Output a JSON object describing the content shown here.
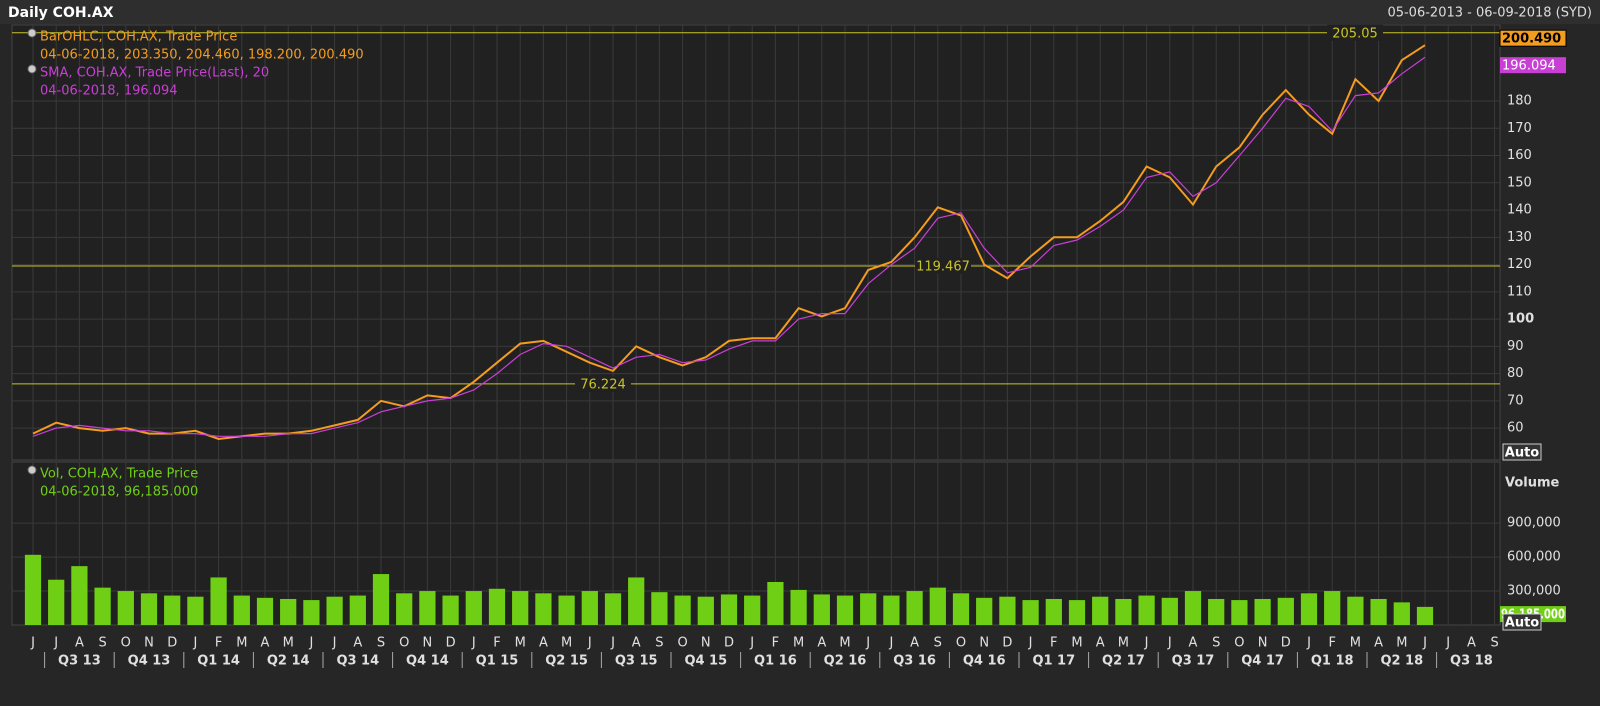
{
  "header": {
    "title": "Daily COH.AX",
    "range": "05-06-2013 - 06-09-2018 (SYD)"
  },
  "auto_label": "Auto",
  "categories": [
    "J",
    "J",
    "A",
    "S",
    "O",
    "N",
    "D",
    "J",
    "F",
    "M",
    "A",
    "M",
    "J",
    "J",
    "A",
    "S",
    "O",
    "N",
    "D",
    "J",
    "F",
    "M",
    "A",
    "M",
    "J",
    "J",
    "A",
    "S",
    "O",
    "N",
    "D",
    "J",
    "F",
    "M",
    "A",
    "M",
    "J",
    "J",
    "A",
    "S",
    "O",
    "N",
    "D",
    "J",
    "F",
    "M",
    "A",
    "M",
    "J",
    "J",
    "A",
    "S",
    "O",
    "N",
    "D",
    "J",
    "F",
    "M",
    "A",
    "M",
    "J",
    "J",
    "A",
    "S"
  ],
  "quarters": [
    "Q3 13",
    "Q4 13",
    "Q1 14",
    "Q2 14",
    "Q3 14",
    "Q4 14",
    "Q1 15",
    "Q2 15",
    "Q3 15",
    "Q4 15",
    "Q1 16",
    "Q2 16",
    "Q3 16",
    "Q4 16",
    "Q1 17",
    "Q2 17",
    "Q3 17",
    "Q4 17",
    "Q1 18",
    "Q2 18",
    "Q3 18"
  ],
  "chart_data": [
    {
      "type": "line",
      "ylim": [
        48.3,
        207.9
      ],
      "yticks": [
        60,
        70,
        80,
        90,
        100,
        110,
        120,
        130,
        140,
        150,
        160,
        170,
        180
      ],
      "grid": true,
      "series": [
        {
          "name": "BarOHLC, COH.AX, Trade Price",
          "legend_value": "04-06-2018, 203.350, 204.460, 198.200, 200.490",
          "color": "#f39c1f",
          "last_label": "200.490",
          "values": [
            58,
            62,
            60,
            59,
            60,
            58,
            58,
            59,
            56,
            57,
            58,
            58,
            59,
            61,
            63,
            70,
            68,
            72,
            71,
            77,
            84,
            91,
            92,
            88,
            84,
            81,
            90,
            86,
            83,
            86,
            92,
            93,
            93,
            104,
            101,
            104,
            118,
            121,
            130,
            141,
            138,
            120,
            115,
            123,
            130,
            130,
            136,
            143,
            156,
            152,
            142,
            156,
            163,
            175,
            184,
            175,
            168,
            188,
            180,
            195,
            200.49,
            null,
            null,
            null
          ]
        },
        {
          "name": "SMA, COH.AX, Trade Price(Last),  20",
          "legend_value": "04-06-2018, 196.094",
          "color": "#c93fd6",
          "last_label": "196.094",
          "values": [
            57,
            60,
            61,
            60,
            59,
            59,
            58,
            58,
            57,
            57,
            57,
            58,
            58,
            60,
            62,
            66,
            68,
            70,
            71,
            74,
            80,
            87,
            91,
            90,
            86,
            82,
            86,
            87,
            84,
            85,
            89,
            92,
            92,
            100,
            102,
            102,
            113,
            120,
            126,
            137,
            139,
            126,
            117,
            119,
            127,
            129,
            134,
            140,
            152,
            154,
            145,
            150,
            160,
            170,
            181,
            178,
            169,
            182,
            183,
            190,
            196.094,
            null,
            null,
            null
          ]
        }
      ],
      "hlines": [
        205.05,
        119.467,
        76.224
      ],
      "hline_color": "#c9c425"
    },
    {
      "type": "bar",
      "y_label": "Volume",
      "ylim": [
        0,
        1440000
      ],
      "yticks": [
        {
          "value": 300000,
          "label": "300,000"
        },
        {
          "value": 600000,
          "label": "600,000"
        },
        {
          "value": 900000,
          "label": "900,000"
        }
      ],
      "series": [
        {
          "name": "Vol, COH.AX, Trade Price",
          "legend_value": "04-06-2018, 96,185.000",
          "color": "#6fcf14",
          "last": {
            "value": 96185,
            "label": "96,185.000"
          },
          "values": [
            620000,
            400000,
            520000,
            330000,
            300000,
            280000,
            260000,
            250000,
            420000,
            260000,
            240000,
            230000,
            220000,
            250000,
            260000,
            450000,
            280000,
            300000,
            260000,
            300000,
            320000,
            300000,
            280000,
            260000,
            300000,
            280000,
            420000,
            290000,
            260000,
            250000,
            270000,
            260000,
            380000,
            310000,
            270000,
            260000,
            280000,
            260000,
            300000,
            330000,
            280000,
            240000,
            250000,
            220000,
            230000,
            220000,
            250000,
            230000,
            260000,
            240000,
            300000,
            230000,
            220000,
            230000,
            240000,
            280000,
            300000,
            250000,
            230000,
            200000,
            160000,
            null,
            null,
            null
          ]
        }
      ]
    }
  ]
}
